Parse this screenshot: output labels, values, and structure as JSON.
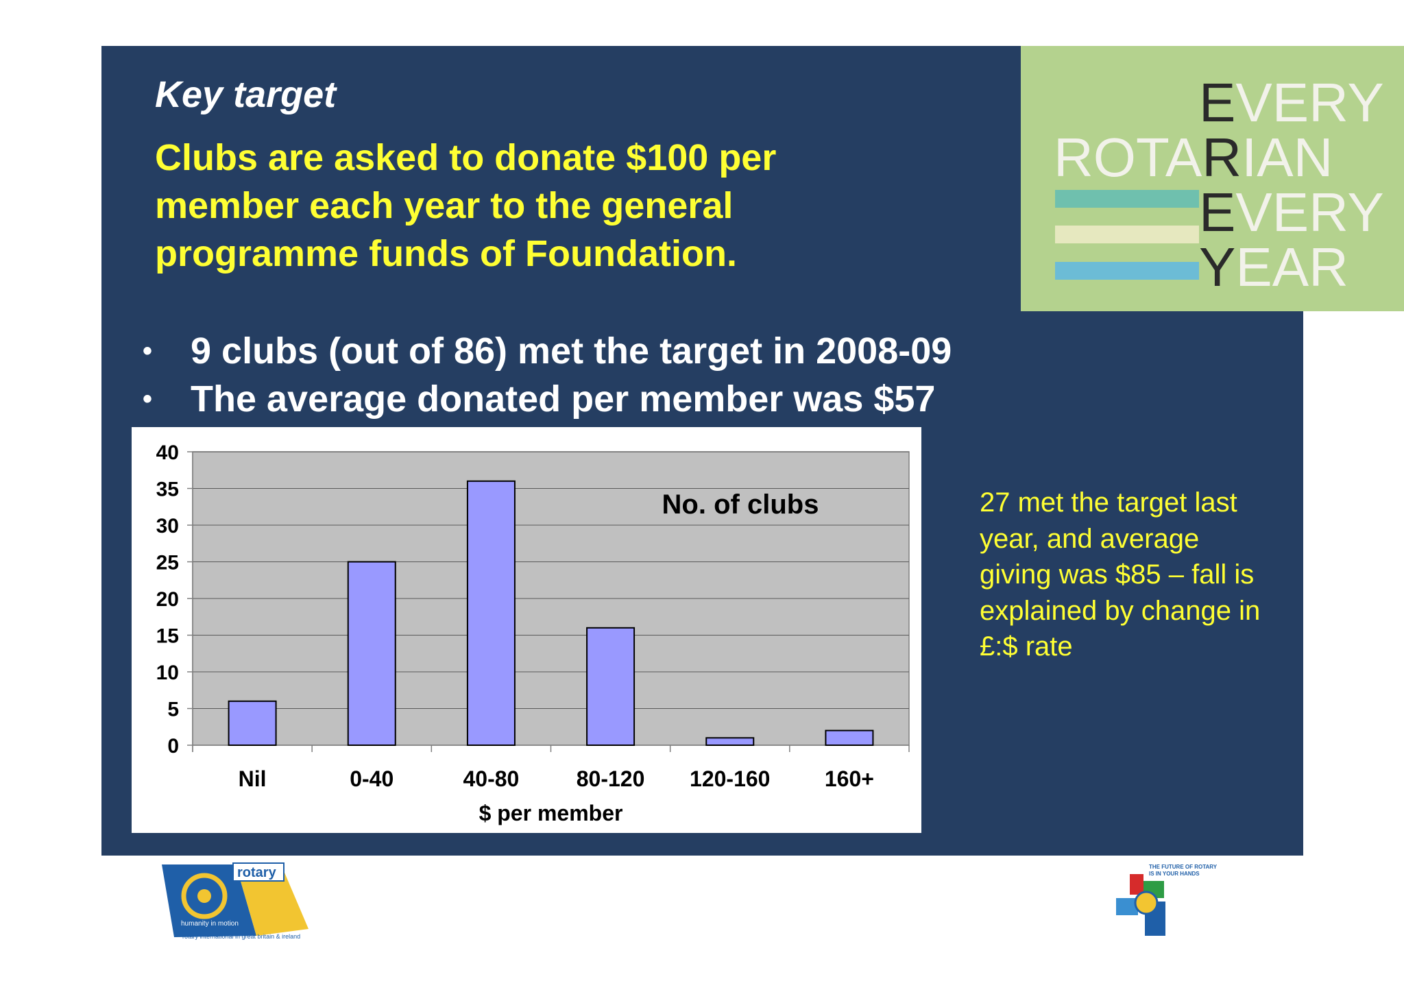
{
  "slide": {
    "heading": "Key target",
    "target_text": "Clubs are asked to donate  $100 per member each year to the general programme funds of Foundation.",
    "bullets": [
      "9 clubs (out of 86) met the target in 2008-09",
      "The average donated per member was $57"
    ],
    "side_note": "27 met the target last year, and average giving was $85 – fall is explained by change in £:$ rate"
  },
  "logo": {
    "lines": [
      "EVERY",
      "ROTARIAN",
      "EVERY",
      "YEAR"
    ],
    "accent_letters": [
      "E",
      "R",
      "E",
      "Y"
    ]
  },
  "footer": {
    "left_logo": {
      "wordmark": "rotary",
      "tagline": "humanity in motion",
      "subtitle": "rotary international in great britain & ireland"
    },
    "right_logo": {
      "text_line1": "THE FUTURE OF ROTARY",
      "text_line2": "IS IN YOUR HANDS"
    }
  },
  "colors": {
    "slide_bg": "#253e62",
    "heading": "#ffffff",
    "accent_yellow": "#ffff33",
    "bar_fill": "#9999ff",
    "plot_bg": "#c0c0c0",
    "logo_bg": "#b4d28e"
  },
  "chart_data": {
    "type": "bar",
    "categories": [
      "Nil",
      "0-40",
      "40-80",
      "80-120",
      "120-160",
      "160+"
    ],
    "series": [
      {
        "name": "No. of clubs",
        "values": [
          6,
          25,
          36,
          16,
          1,
          2
        ]
      }
    ],
    "title": "",
    "xlabel": "$ per member",
    "ylabel": "",
    "ylim": [
      0,
      40
    ],
    "yticks": [
      0,
      5,
      10,
      15,
      20,
      25,
      30,
      35,
      40
    ],
    "grid": true,
    "legend": "top-right"
  }
}
